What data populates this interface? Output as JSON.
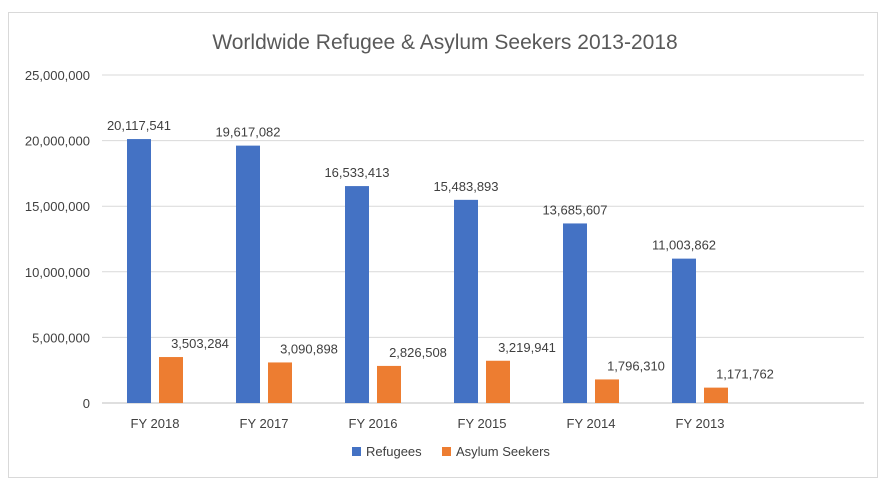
{
  "chart_data": {
    "type": "bar",
    "title": "Worldwide Refugee & Asylum Seekers 2013-2018",
    "xlabel": "",
    "ylabel": "",
    "categories": [
      "FY 2018",
      "FY 2017",
      "FY 2016",
      "FY 2015",
      "FY 2014",
      "FY 2013"
    ],
    "series": [
      {
        "name": "Refugees",
        "color": "#4472C4",
        "values": [
          20117541,
          19617082,
          16533413,
          15483893,
          13685607,
          11003862
        ],
        "labels": [
          "20,117,541",
          "19,617,082",
          "16,533,413",
          "15,483,893",
          "13,685,607",
          "11,003,862"
        ]
      },
      {
        "name": "Asylum Seekers",
        "color": "#ED7D31",
        "values": [
          3503284,
          3090898,
          2826508,
          3219941,
          1796310,
          1171762
        ],
        "labels": [
          "3,503,284",
          "3,090,898",
          "2,826,508",
          "3,219,941",
          "1,796,310",
          "1,171,762"
        ]
      }
    ],
    "ylim": [
      0,
      25000000
    ],
    "yticks": [
      0,
      5000000,
      10000000,
      15000000,
      20000000,
      25000000
    ],
    "ytick_labels": [
      "0",
      "5,000,000",
      "10,000,000",
      "15,000,000",
      "20,000,000",
      "25,000,000"
    ],
    "grid": true,
    "legend_position": "bottom"
  }
}
